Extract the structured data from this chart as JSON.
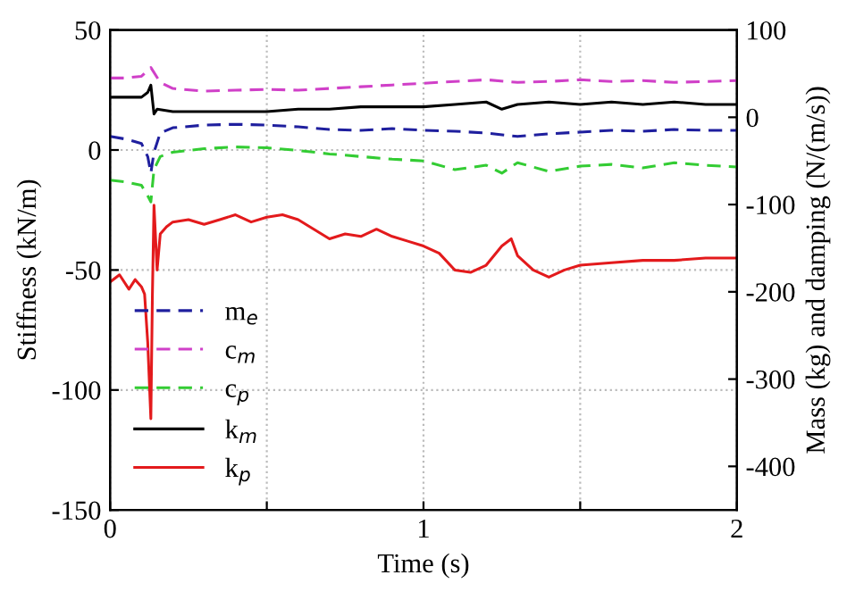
{
  "chart_data": {
    "type": "line",
    "xlabel": "Time (s)",
    "ylabel": "Stiffness (kN/m)",
    "y2label": "Mass (kg) and damping (N/(m/s))",
    "xlim": [
      0,
      2
    ],
    "xticks": [
      0,
      {
        "value": 0.5,
        "label": null
      },
      1,
      {
        "value": 1.5,
        "label": null
      },
      2
    ],
    "ylim": [
      -150,
      50
    ],
    "yticks": [
      -150,
      -100,
      -50,
      0,
      50
    ],
    "y2lim": [
      -450,
      100
    ],
    "y2ticks": [
      -400,
      -300,
      -200,
      -100,
      0,
      100
    ],
    "grid": true,
    "legend": "bottom left",
    "series": [
      {
        "name": "m$_{e}$",
        "color": "#1f1f9e",
        "axis": "y2",
        "line_style": "dashed",
        "x": [
          0,
          0.05,
          0.1,
          0.12,
          0.13,
          0.14,
          0.16,
          0.2,
          0.3,
          0.4,
          0.5,
          0.6,
          0.7,
          0.8,
          0.9,
          1.0,
          1.1,
          1.2,
          1.3,
          1.4,
          1.5,
          1.6,
          1.7,
          1.8,
          1.9,
          2.0
        ],
        "values": [
          -22,
          -25,
          -30,
          -45,
          -64,
          -40,
          -18,
          -12,
          -9,
          -8,
          -9,
          -11,
          -14,
          -15,
          -13,
          -15,
          -16,
          -18,
          -22,
          -19,
          -17,
          -15,
          -16,
          -14,
          -15,
          -15
        ]
      },
      {
        "name": "c$_{m}$",
        "color": "#d040c8",
        "axis": "y2",
        "line_style": "dashed",
        "x": [
          0,
          0.05,
          0.1,
          0.13,
          0.16,
          0.2,
          0.3,
          0.4,
          0.5,
          0.6,
          0.7,
          0.8,
          0.9,
          1.0,
          1.1,
          1.2,
          1.3,
          1.4,
          1.5,
          1.6,
          1.7,
          1.8,
          1.9,
          2.0
        ],
        "values": [
          45,
          45,
          47,
          57,
          40,
          33,
          30,
          31,
          32,
          31,
          33,
          35,
          37,
          39,
          41,
          43,
          40,
          41,
          43,
          41,
          42,
          40,
          41,
          42
        ]
      },
      {
        "name": "c$_{p}$",
        "color": "#33cc33",
        "axis": "y2",
        "line_style": "dashed",
        "x": [
          0,
          0.05,
          0.1,
          0.12,
          0.13,
          0.14,
          0.16,
          0.2,
          0.3,
          0.4,
          0.5,
          0.6,
          0.7,
          0.8,
          0.9,
          1.0,
          1.1,
          1.2,
          1.25,
          1.3,
          1.4,
          1.5,
          1.6,
          1.7,
          1.8,
          1.9,
          2.0
        ],
        "values": [
          -72,
          -74,
          -78,
          -90,
          -97,
          -60,
          -45,
          -40,
          -36,
          -34,
          -35,
          -38,
          -42,
          -45,
          -48,
          -50,
          -60,
          -55,
          -64,
          -52,
          -62,
          -56,
          -54,
          -58,
          -52,
          -55,
          -57
        ]
      },
      {
        "name": "k$_{m}$",
        "color": "#000000",
        "axis": "y",
        "line_style": "solid",
        "x": [
          0,
          0.05,
          0.1,
          0.12,
          0.13,
          0.14,
          0.15,
          0.2,
          0.3,
          0.4,
          0.5,
          0.6,
          0.7,
          0.8,
          0.9,
          1.0,
          1.1,
          1.2,
          1.25,
          1.3,
          1.4,
          1.5,
          1.6,
          1.7,
          1.8,
          1.9,
          2.0
        ],
        "values": [
          22,
          22,
          22,
          24,
          27,
          15,
          17,
          16,
          16,
          16,
          16,
          17,
          17,
          18,
          18,
          18,
          19,
          20,
          17,
          19,
          20,
          19,
          20,
          19,
          20,
          19,
          19
        ]
      },
      {
        "name": "k$_{p}$",
        "color": "#e31a1c",
        "axis": "y",
        "line_style": "solid",
        "x": [
          0,
          0.03,
          0.06,
          0.08,
          0.1,
          0.11,
          0.12,
          0.13,
          0.135,
          0.14,
          0.15,
          0.16,
          0.18,
          0.2,
          0.25,
          0.3,
          0.35,
          0.4,
          0.45,
          0.5,
          0.55,
          0.6,
          0.65,
          0.7,
          0.75,
          0.8,
          0.85,
          0.9,
          0.95,
          1.0,
          1.05,
          1.1,
          1.15,
          1.2,
          1.25,
          1.28,
          1.3,
          1.35,
          1.4,
          1.45,
          1.5,
          1.6,
          1.7,
          1.8,
          1.9,
          2.0
        ],
        "values": [
          -55,
          -52,
          -58,
          -54,
          -57,
          -60,
          -80,
          -112,
          -60,
          -23,
          -50,
          -35,
          -32,
          -30,
          -29,
          -31,
          -29,
          -27,
          -30,
          -28,
          -27,
          -29,
          -33,
          -37,
          -35,
          -36,
          -33,
          -36,
          -38,
          -40,
          -43,
          -50,
          -51,
          -48,
          -40,
          -37,
          -44,
          -50,
          -53,
          -50,
          -48,
          -47,
          -46,
          -46,
          -45,
          -45
        ]
      }
    ]
  }
}
